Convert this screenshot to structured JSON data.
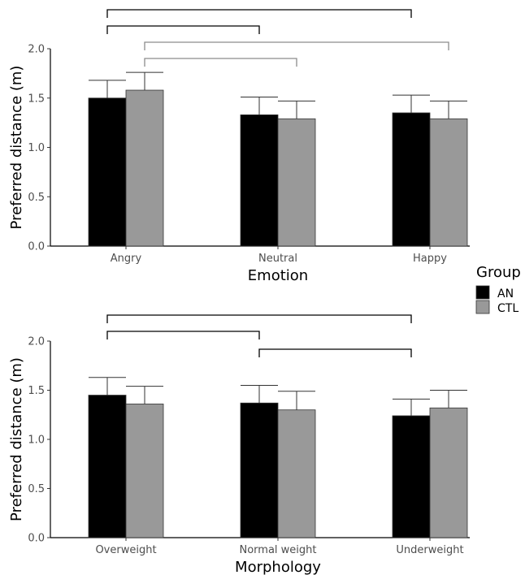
{
  "colors": {
    "AN": "#000000",
    "CTL": "#999999",
    "bracket_dark": "#000000",
    "bracket_light": "#8c8c8c"
  },
  "legend": {
    "title": "Group",
    "items": [
      {
        "label": "AN",
        "color": "#000000"
      },
      {
        "label": "CTL",
        "color": "#999999"
      }
    ]
  },
  "chart_data": [
    {
      "type": "bar",
      "xlabel": "Emotion",
      "ylabel": "Preferred distance (m)",
      "ylim": [
        0,
        2.0
      ],
      "yticks": [
        "0.0",
        "0.5",
        "1.0",
        "1.5",
        "2.0"
      ],
      "categories": [
        "Angry",
        "Neutral",
        "Happy"
      ],
      "series": [
        {
          "name": "AN",
          "values": [
            1.5,
            1.33,
            1.35
          ],
          "errors": [
            0.18,
            0.18,
            0.18
          ]
        },
        {
          "name": "CTL",
          "values": [
            1.58,
            1.29,
            1.29
          ],
          "errors": [
            0.18,
            0.18,
            0.18
          ]
        }
      ],
      "significance_brackets": [
        {
          "from": "Angry",
          "to": "Happy",
          "group": "AN"
        },
        {
          "from": "Angry",
          "to": "Neutral",
          "group": "AN"
        },
        {
          "from": "Angry",
          "to": "Neutral",
          "group": "CTL"
        },
        {
          "from": "Angry",
          "to": "Happy",
          "group": "CTL"
        }
      ]
    },
    {
      "type": "bar",
      "xlabel": "Morphology",
      "ylabel": "Preferred distance (m)",
      "ylim": [
        0,
        2.0
      ],
      "yticks": [
        "0.0",
        "0.5",
        "1.0",
        "1.5",
        "2.0"
      ],
      "categories": [
        "Overweight",
        "Normal weight",
        "Underweight"
      ],
      "series": [
        {
          "name": "AN",
          "values": [
            1.45,
            1.37,
            1.24
          ],
          "errors": [
            0.18,
            0.18,
            0.17
          ]
        },
        {
          "name": "CTL",
          "values": [
            1.36,
            1.3,
            1.32
          ],
          "errors": [
            0.18,
            0.19,
            0.18
          ]
        }
      ],
      "significance_brackets": [
        {
          "from": "Overweight",
          "to": "Underweight",
          "group": "AN"
        },
        {
          "from": "Overweight",
          "to": "Normal weight",
          "group": "AN"
        },
        {
          "from": "Normal weight",
          "to": "Underweight",
          "group": "AN"
        }
      ]
    }
  ]
}
